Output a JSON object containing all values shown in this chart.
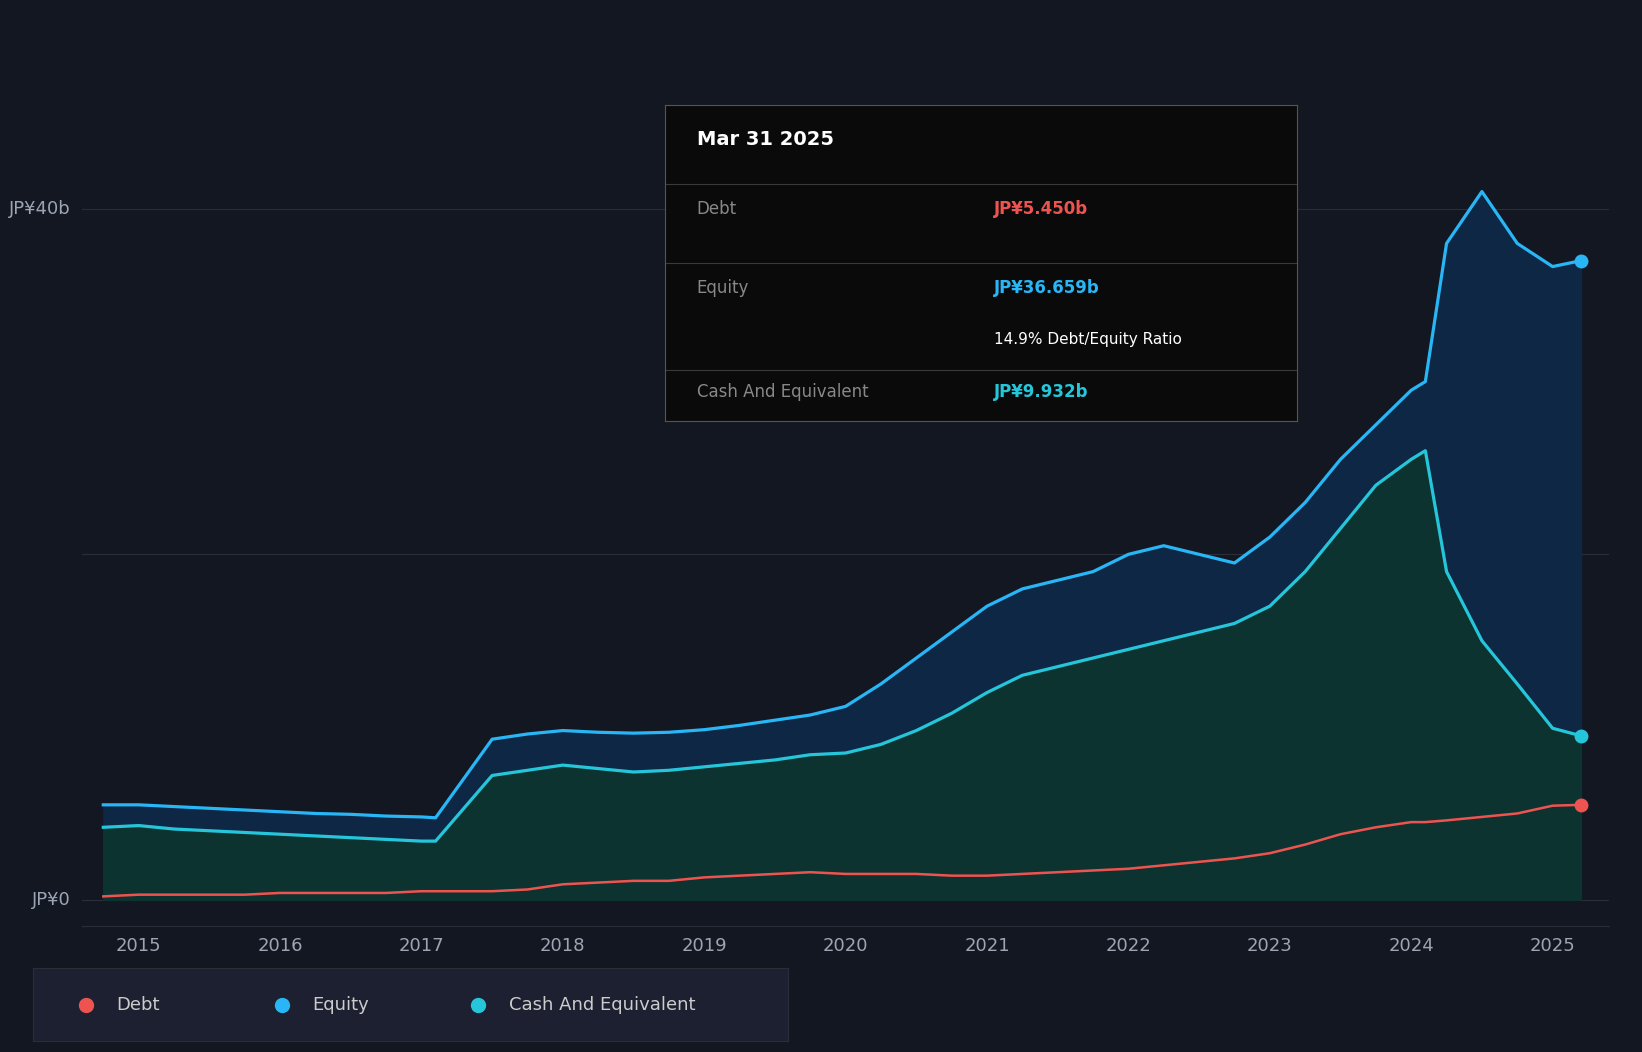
{
  "background_color": "#131722",
  "grid_color": "#2a2e39",
  "tooltip": {
    "date": "Mar 31 2025",
    "debt_label": "Debt",
    "debt_value": "JP¥5.450b",
    "equity_label": "Equity",
    "equity_value": "JP¥36.659b",
    "ratio_text": "14.9% Debt/Equity Ratio",
    "cash_label": "Cash And Equivalent",
    "cash_value": "JP¥9.932b",
    "debt_color": "#ef5350",
    "equity_color": "#29b6f6",
    "cash_color": "#26c6da",
    "ratio_color": "#ffffff"
  },
  "ylabel_40": "JP¥40b",
  "ylabel_0": "JP¥0",
  "years": [
    2014.75,
    2015.0,
    2015.25,
    2015.5,
    2015.75,
    2016.0,
    2016.25,
    2016.5,
    2016.75,
    2017.0,
    2017.1,
    2017.5,
    2017.75,
    2018.0,
    2018.25,
    2018.5,
    2018.75,
    2019.0,
    2019.25,
    2019.5,
    2019.75,
    2020.0,
    2020.25,
    2020.5,
    2020.75,
    2021.0,
    2021.25,
    2021.5,
    2021.75,
    2022.0,
    2022.25,
    2022.5,
    2022.75,
    2023.0,
    2023.25,
    2023.5,
    2023.75,
    2024.0,
    2024.1,
    2024.25,
    2024.5,
    2024.75,
    2025.0,
    2025.2
  ],
  "equity": [
    5.5,
    5.5,
    5.4,
    5.3,
    5.2,
    5.1,
    5.0,
    4.95,
    4.85,
    4.8,
    4.75,
    9.3,
    9.6,
    9.8,
    9.7,
    9.65,
    9.7,
    9.85,
    10.1,
    10.4,
    10.7,
    11.2,
    12.5,
    14.0,
    15.5,
    17.0,
    18.0,
    18.5,
    19.0,
    20.0,
    20.5,
    20.0,
    19.5,
    21.0,
    23.0,
    25.5,
    27.5,
    29.5,
    30.0,
    38.0,
    41.0,
    38.0,
    36.659,
    37.0
  ],
  "cash": [
    4.2,
    4.3,
    4.1,
    4.0,
    3.9,
    3.8,
    3.7,
    3.6,
    3.5,
    3.4,
    3.4,
    7.2,
    7.5,
    7.8,
    7.6,
    7.4,
    7.5,
    7.7,
    7.9,
    8.1,
    8.4,
    8.5,
    9.0,
    9.8,
    10.8,
    12.0,
    13.0,
    13.5,
    14.0,
    14.5,
    15.0,
    15.5,
    16.0,
    17.0,
    19.0,
    21.5,
    24.0,
    25.5,
    26.0,
    19.0,
    15.0,
    12.5,
    9.932,
    9.5
  ],
  "debt": [
    0.2,
    0.3,
    0.3,
    0.3,
    0.3,
    0.4,
    0.4,
    0.4,
    0.4,
    0.5,
    0.5,
    0.5,
    0.6,
    0.9,
    1.0,
    1.1,
    1.1,
    1.3,
    1.4,
    1.5,
    1.6,
    1.5,
    1.5,
    1.5,
    1.4,
    1.4,
    1.5,
    1.6,
    1.7,
    1.8,
    2.0,
    2.2,
    2.4,
    2.7,
    3.2,
    3.8,
    4.2,
    4.5,
    4.5,
    4.6,
    4.8,
    5.0,
    5.45,
    5.5
  ],
  "equity_line_color": "#29b6f6",
  "equity_fill_color": "#0d2744",
  "cash_line_color": "#26c6da",
  "cash_fill_color": "#0d3330",
  "debt_line_color": "#ef5350",
  "xticks": [
    2015,
    2016,
    2017,
    2018,
    2019,
    2020,
    2021,
    2022,
    2023,
    2024,
    2025
  ],
  "xlim": [
    2014.6,
    2025.4
  ],
  "ylim": [
    -1.5,
    46
  ],
  "legend_items": [
    {
      "label": "Debt",
      "color": "#ef5350"
    },
    {
      "label": "Equity",
      "color": "#29b6f6"
    },
    {
      "label": "Cash And Equivalent",
      "color": "#26c6da"
    }
  ]
}
